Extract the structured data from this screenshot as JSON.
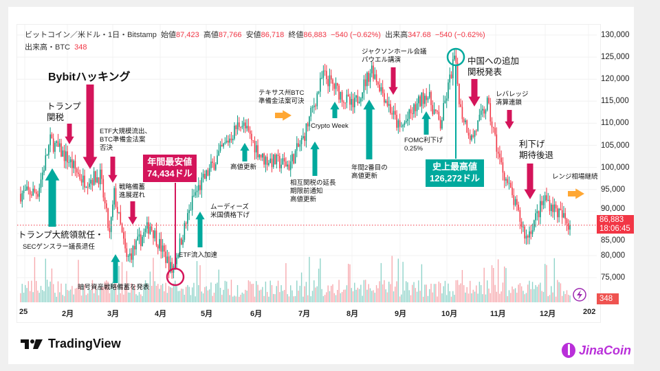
{
  "header": {
    "symbol": "ビットコイン／米ドル・1日・Bitstamp",
    "open_label": "始値",
    "open": "87,423",
    "high_label": "高値",
    "high": "87,766",
    "low_label": "安値",
    "low": "86,718",
    "close_label": "終値",
    "close": "86,883",
    "change": "−540 (−0.62%)",
    "volume_label": "出来高",
    "volume": "347.68",
    "volume_change": "−540 (−0.62%)",
    "volume_series_label": "出来高・BTC",
    "volume_series_value": "348"
  },
  "chart_data": {
    "type": "candlestick",
    "title": "",
    "yaxis": {
      "ticks": [
        "130,000",
        "125,000",
        "120,000",
        "115,000",
        "110,000",
        "105,000",
        "100,000",
        "95,000",
        "90,000",
        "85,000",
        "80,000",
        "75,000"
      ],
      "range": [
        70000,
        131000
      ],
      "position": "right"
    },
    "xaxis": {
      "ticks": [
        "25",
        "2月",
        "3月",
        "4月",
        "5月",
        "6月",
        "7月",
        "8月",
        "9月",
        "10月",
        "11月",
        "12月",
        "202"
      ]
    },
    "grid": true,
    "price_path": [
      {
        "date": "2025-01-01",
        "close": 94000
      },
      {
        "date": "2025-01-12",
        "close": 94500
      },
      {
        "date": "2025-01-20",
        "close": 106000
      },
      {
        "date": "2025-01-31",
        "close": 102000
      },
      {
        "date": "2025-02-10",
        "close": 97000
      },
      {
        "date": "2025-02-21",
        "close": 98000
      },
      {
        "date": "2025-02-27",
        "close": 84500
      },
      {
        "date": "2025-03-02",
        "close": 94000
      },
      {
        "date": "2025-03-10",
        "close": 79000
      },
      {
        "date": "2025-03-25",
        "close": 87000
      },
      {
        "date": "2025-04-08",
        "close": 76500
      },
      {
        "date": "2025-04-22",
        "close": 93500
      },
      {
        "date": "2025-05-10",
        "close": 104000
      },
      {
        "date": "2025-05-22",
        "close": 110500
      },
      {
        "date": "2025-06-05",
        "close": 102000
      },
      {
        "date": "2025-06-22",
        "close": 100500
      },
      {
        "date": "2025-07-01",
        "close": 106500
      },
      {
        "date": "2025-07-14",
        "close": 121000
      },
      {
        "date": "2025-08-02",
        "close": 113500
      },
      {
        "date": "2025-08-14",
        "close": 122500
      },
      {
        "date": "2025-09-01",
        "close": 108500
      },
      {
        "date": "2025-09-18",
        "close": 117000
      },
      {
        "date": "2025-09-27",
        "close": 109500
      },
      {
        "date": "2025-10-06",
        "close": 125000
      },
      {
        "date": "2025-10-10",
        "close": 113000
      },
      {
        "date": "2025-10-17",
        "close": 106500
      },
      {
        "date": "2025-10-27",
        "close": 114500
      },
      {
        "date": "2025-11-04",
        "close": 101500
      },
      {
        "date": "2025-11-21",
        "close": 84000
      },
      {
        "date": "2025-12-03",
        "close": 93000
      },
      {
        "date": "2025-12-19",
        "close": 86883
      }
    ],
    "last_price": {
      "value": 86883,
      "label": "86,883",
      "countdown": "18:06:45"
    },
    "last_volume": {
      "value": 348,
      "label": "348"
    },
    "annual_low": 74434,
    "all_time_high": 126272,
    "colors": {
      "up": "#089981",
      "down": "#f23645",
      "annotation_up": "#00a99d",
      "annotation_down": "#d4145a",
      "annotation_side": "#ffa733"
    }
  },
  "annotations": {
    "bybit": "Bybitハッキング",
    "trump_tariff": "トランプ\n関税",
    "etf_outflow": "ETF大規模流出、\nBTC準備金法案\n否決",
    "reserve_delay": "戦略備蓄\n進展遅れ",
    "inauguration_1": "トランプ大統領就任・",
    "inauguration_2": "SECゲンスラー議長退任",
    "reserve_announce": "暗号資産戦略備蓄を発表",
    "annual_low_box": "年間最安値\n74,434ドル",
    "etf_inflow": "ETF流入加速",
    "moodys": "ムーディーズ\n米国債格下げ",
    "new_high_1": "高値更新",
    "texas": "テキサス州BTC\n準備金法案可決",
    "tariff_extension": "相互関税の延長\n期限前通知\n高値更新",
    "crypto_week": "Crypto Week",
    "jackson_hole": "ジャクソンホール会議\nパウエル講演",
    "second_high": "年間2番目の\n高値更新",
    "fomc": "FOMC利下げ\n0.25%",
    "ath_box": "史上最高値\n126,272ドル",
    "china_tariff": "中国への追加\n関税発表",
    "leverage": "レバレッジ\n清算連鎖",
    "rate_cut_retreat": "利下げ\n期待後退",
    "range": "レンジ相場継続"
  },
  "branding": {
    "tradingview": "TradingView",
    "jinacoin": "JinaCoin"
  }
}
